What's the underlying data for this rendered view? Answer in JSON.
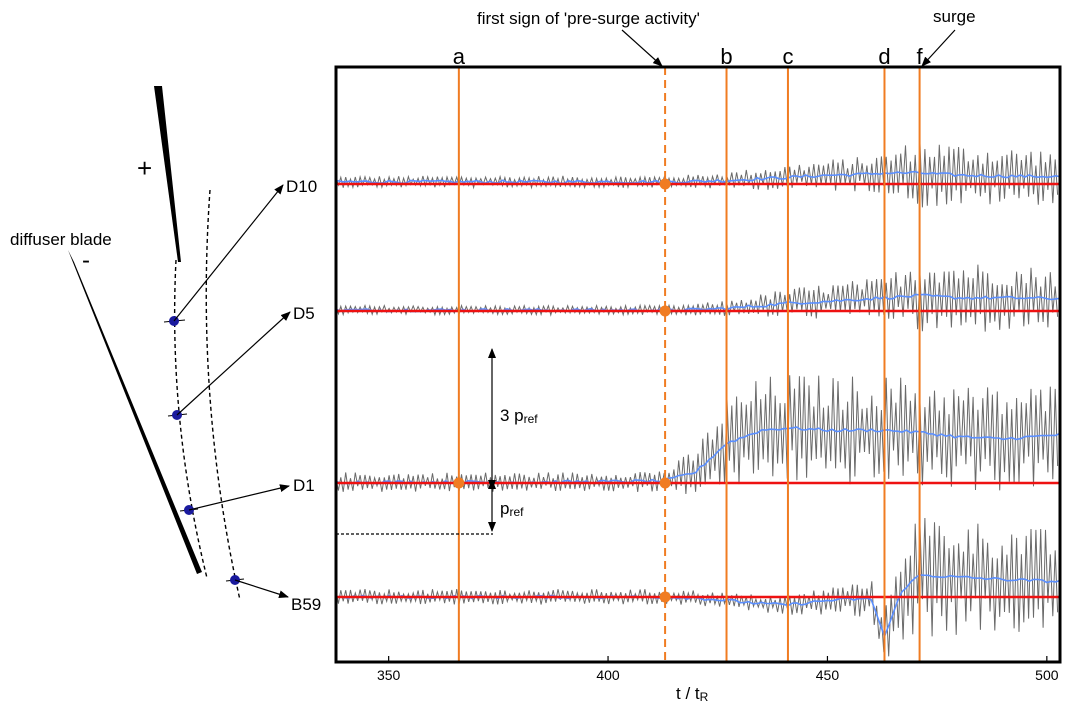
{
  "chart_data": {
    "type": "line",
    "xlabel": "t / t",
    "xlabel_sub": "R",
    "xlim": [
      338,
      503
    ],
    "x_ticks": [
      350,
      400,
      450,
      500
    ],
    "grid": false,
    "event_markers": [
      {
        "label": "a",
        "x": 366,
        "style": "solid"
      },
      {
        "label": "",
        "x": 413,
        "style": "dashed"
      },
      {
        "label": "b",
        "x": 427,
        "style": "solid"
      },
      {
        "label": "c",
        "x": 441,
        "style": "solid"
      },
      {
        "label": "d",
        "x": 463,
        "style": "solid"
      },
      {
        "label": "f",
        "x": 471,
        "style": "solid"
      }
    ],
    "annotations": {
      "first_sign": "first sign of 'pre-surge activity'",
      "surge": "surge",
      "amp_big_prefix": "3 p",
      "amp_big_sub": "ref",
      "amp_small_prefix": "p",
      "amp_small_sub": "ref"
    },
    "series": [
      {
        "name": "D10",
        "x": [
          338,
          380,
          413,
          420,
          427,
          435,
          441,
          450,
          458,
          463,
          471,
          480,
          490,
          503
        ],
        "amplitude_pref": [
          0.15,
          0.15,
          0.15,
          0.18,
          0.22,
          0.28,
          0.33,
          0.4,
          0.45,
          0.5,
          0.9,
          0.8,
          0.75,
          0.7
        ],
        "mean_pref": [
          0.05,
          0.05,
          0.05,
          0.06,
          0.08,
          0.12,
          0.15,
          0.2,
          0.22,
          0.25,
          0.25,
          0.2,
          0.18,
          0.17
        ]
      },
      {
        "name": "D5",
        "x": [
          338,
          380,
          413,
          420,
          427,
          435,
          441,
          450,
          458,
          463,
          471,
          480,
          490,
          503
        ],
        "amplitude_pref": [
          0.12,
          0.12,
          0.12,
          0.15,
          0.2,
          0.3,
          0.38,
          0.45,
          0.5,
          0.52,
          1.0,
          0.95,
          0.85,
          0.8
        ],
        "mean_pref": [
          0.02,
          0.02,
          0.02,
          0.03,
          0.06,
          0.12,
          0.18,
          0.22,
          0.27,
          0.3,
          0.35,
          0.3,
          0.3,
          0.28
        ]
      },
      {
        "name": "D1",
        "x": [
          338,
          380,
          400,
          413,
          420,
          427,
          435,
          441,
          450,
          458,
          463,
          471,
          480,
          490,
          503
        ],
        "amplitude_pref": [
          0.25,
          0.25,
          0.25,
          0.3,
          0.6,
          1.2,
          1.35,
          1.4,
          1.4,
          1.4,
          1.4,
          1.4,
          1.35,
          1.35,
          1.3
        ],
        "mean_pref": [
          0.02,
          0.02,
          0.03,
          0.05,
          0.25,
          0.9,
          1.2,
          1.25,
          1.2,
          1.2,
          1.2,
          1.15,
          1.05,
          1.0,
          1.1
        ]
      },
      {
        "name": "B59",
        "x": [
          338,
          380,
          413,
          420,
          427,
          435,
          441,
          450,
          455,
          460,
          463,
          467,
          471,
          480,
          490,
          503
        ],
        "amplitude_pref": [
          0.2,
          0.2,
          0.2,
          0.2,
          0.2,
          0.22,
          0.25,
          0.35,
          0.4,
          0.5,
          0.6,
          1.5,
          1.6,
          1.5,
          1.4,
          1.3
        ],
        "mean_pref": [
          0,
          0,
          0,
          -0.02,
          -0.08,
          -0.15,
          -0.18,
          -0.08,
          -0.05,
          -0.05,
          -0.9,
          0.15,
          0.5,
          0.45,
          0.4,
          0.35
        ]
      }
    ]
  },
  "left_diagram": {
    "plus": "+",
    "minus": "-",
    "blade_label": "diffuser blade",
    "probe_labels": [
      "D10",
      "D5",
      "D1",
      "B59"
    ]
  }
}
